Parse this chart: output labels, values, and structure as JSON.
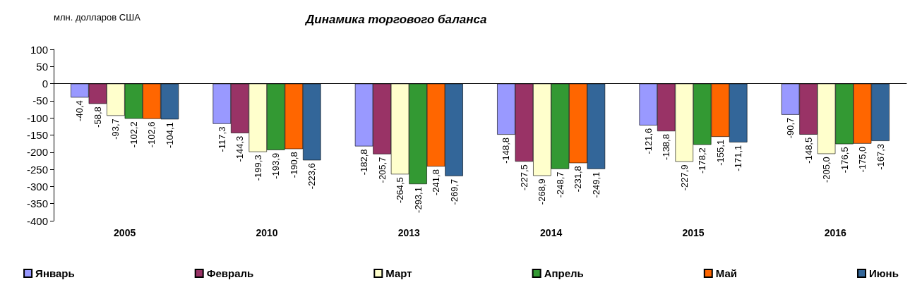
{
  "chart_data": {
    "type": "bar",
    "title": "Динамика торгового баланса",
    "ylabel": "млн. долларов США",
    "categories": [
      "2005",
      "2010",
      "2013",
      "2014",
      "2015",
      "2016"
    ],
    "series": [
      {
        "name": "Январь",
        "color": "#9999ff",
        "values": [
          -40.4,
          -117.3,
          -182.8,
          -148.8,
          -121.6,
          -90.7
        ],
        "value_labels": [
          "-40,4",
          "-117,3",
          "-182,8",
          "-148,8",
          "-121,6",
          "-90,7"
        ]
      },
      {
        "name": "Февраль",
        "color": "#993366",
        "values": [
          -58.8,
          -144.3,
          -205.7,
          -227.5,
          -138.8,
          -148.5
        ],
        "value_labels": [
          "-58,8",
          "-144,3",
          "-205,7",
          "-227,5",
          "-138,8",
          "-148,5"
        ]
      },
      {
        "name": "Март",
        "color": "#ffffcc",
        "values": [
          -93.7,
          -199.3,
          -264.5,
          -268.9,
          -227.9,
          -205.0
        ],
        "value_labels": [
          "-93,7",
          "-199,3",
          "-264,5",
          "-268,9",
          "-227,9",
          "-205,0"
        ]
      },
      {
        "name": "Апрель",
        "color": "#339933",
        "values": [
          -102.2,
          -193.9,
          -293.1,
          -248.7,
          -178.2,
          -176.5
        ],
        "value_labels": [
          "-102,2",
          "-193,9",
          "-293,1",
          "-248,7",
          "-178,2",
          "-176,5"
        ]
      },
      {
        "name": "Май",
        "color": "#ff6600",
        "values": [
          -102.6,
          -190.8,
          -241.8,
          -231.8,
          -155.1,
          -175.0
        ],
        "value_labels": [
          "-102,6",
          "-190,8",
          "-241,8",
          "-231,8",
          "-155,1",
          "-175,0"
        ]
      },
      {
        "name": "Июнь",
        "color": "#336699",
        "values": [
          -104.1,
          -223.6,
          -269.7,
          -249.1,
          -171.1,
          -167.3
        ],
        "value_labels": [
          "-104,1",
          "-223,6",
          "-269,7",
          "-249,1",
          "-171,1",
          "-167,3"
        ]
      }
    ],
    "ylim": [
      -400,
      100
    ],
    "yticks": [
      100,
      50,
      0,
      -50,
      -100,
      -150,
      -200,
      -250,
      -300,
      -350,
      -400
    ],
    "legend": "bottom"
  }
}
